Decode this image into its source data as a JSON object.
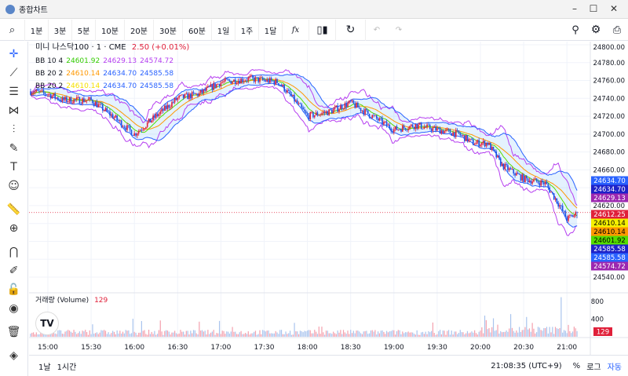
{
  "window": {
    "title": "종합차트",
    "minimize": "–",
    "maximize": "☐",
    "close": "✕"
  },
  "toolbar": {
    "intervals": [
      "1분",
      "3분",
      "5분",
      "10분",
      "20분",
      "30분",
      "60분",
      "1일",
      "1주",
      "1달"
    ],
    "fx": "fx"
  },
  "symbol": {
    "name": "미니 나스닥100 · 1 · CME",
    "change": "2.50 (+0.01%)"
  },
  "indicators": [
    {
      "label": "BB 10 4",
      "values": [
        "24601.92",
        "24629.13",
        "24574.72"
      ],
      "colors": [
        "#33cc00",
        "#b63ff0",
        "#b63ff0"
      ]
    },
    {
      "label": "BB 20 2",
      "values": [
        "24610.14",
        "24634.70",
        "24585.58"
      ],
      "colors": [
        "#ff9800",
        "#2962ff",
        "#2962ff"
      ]
    },
    {
      "label": "BB 20 2",
      "values": [
        "24610.14",
        "24634.70",
        "24585.58"
      ],
      "colors": [
        "#f5e000",
        "#2962ff",
        "#2962ff"
      ]
    }
  ],
  "volume": {
    "label": "거래량 (Volume)",
    "value": "129",
    "ticks": [
      "800",
      "400"
    ]
  },
  "price_axis": {
    "ticks": [
      "24800.00",
      "24780.00",
      "24760.00",
      "24740.00",
      "24720.00",
      "24700.00",
      "24680.00",
      "24660.00",
      "24620.00",
      "24540.00"
    ],
    "tags": [
      {
        "v": "24634.70",
        "c": "#2962ff"
      },
      {
        "v": "24634.70",
        "c": "#1e22c8"
      },
      {
        "v": "24629.13",
        "c": "#9c27b0"
      },
      {
        "v": "24612.25",
        "c": "#e0203a"
      },
      {
        "v": "24610.14",
        "c": "#f5f000",
        "t": "#000"
      },
      {
        "v": "24610.14",
        "c": "#ff9800",
        "t": "#000"
      },
      {
        "v": "24601.92",
        "c": "#55dd00",
        "t": "#000"
      },
      {
        "v": "24585.58",
        "c": "#1e22c8"
      },
      {
        "v": "24585.58",
        "c": "#2962ff"
      },
      {
        "v": "24574.72",
        "c": "#9c27b0"
      }
    ]
  },
  "time_axis": [
    "15:00",
    "15:30",
    "16:00",
    "16:30",
    "17:00",
    "17:30",
    "18:00",
    "18:30",
    "19:00",
    "19:30",
    "20:00",
    "20:30",
    "21:00"
  ],
  "bottom": {
    "ranges": [
      "1날",
      "1시간"
    ],
    "clock": "21:08:35 (UTC+9)",
    "percent": "%",
    "log": "로그",
    "auto": "자동"
  },
  "chart_data": {
    "type": "candlestick",
    "ylim": [
      24540,
      24800
    ],
    "last": 24612.25,
    "path": [
      [
        -12,
        24748
      ],
      [
        0,
        24745
      ],
      [
        10,
        24738
      ],
      [
        30,
        24738
      ],
      [
        45,
        24720
      ],
      [
        60,
        24700
      ],
      [
        75,
        24720
      ],
      [
        90,
        24740
      ],
      [
        105,
        24745
      ],
      [
        120,
        24758
      ],
      [
        140,
        24762
      ],
      [
        160,
        24758
      ],
      [
        170,
        24740
      ],
      [
        180,
        24720
      ],
      [
        195,
        24725
      ],
      [
        210,
        24735
      ],
      [
        225,
        24720
      ],
      [
        240,
        24705
      ],
      [
        255,
        24710
      ],
      [
        270,
        24705
      ],
      [
        285,
        24700
      ],
      [
        295,
        24690
      ],
      [
        305,
        24690
      ],
      [
        315,
        24665
      ],
      [
        330,
        24650
      ],
      [
        345,
        24645
      ],
      [
        355,
        24620
      ],
      [
        360,
        24605
      ],
      [
        368,
        24612
      ]
    ]
  }
}
